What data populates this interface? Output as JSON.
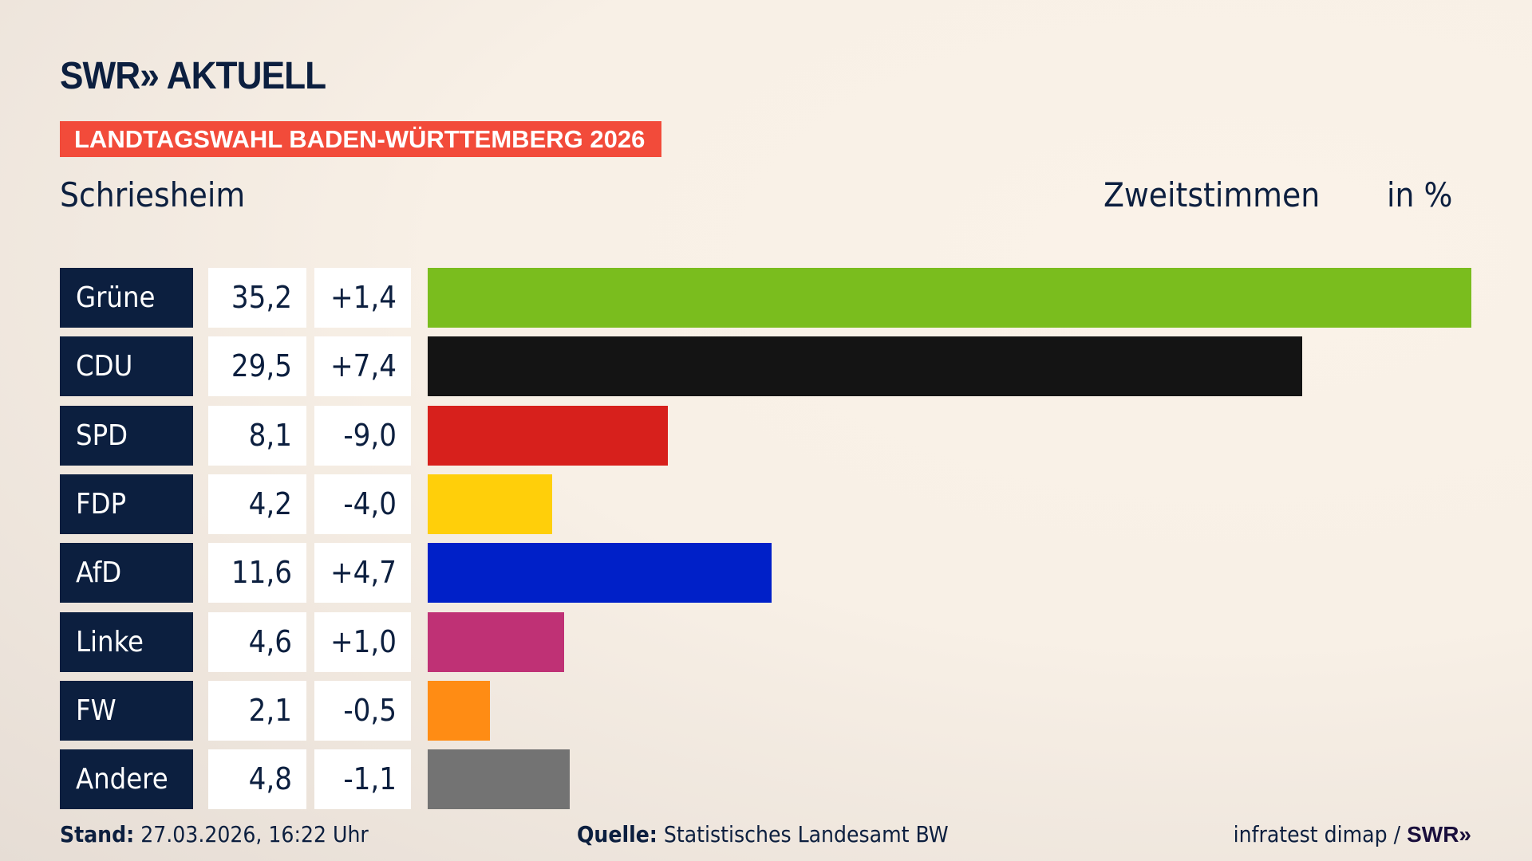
{
  "header": {
    "logo": "SWR» AKTUELL",
    "banner": "LANDTAGSWAHL BADEN-WÜRTTEMBERG 2026",
    "place": "Schriesheim",
    "measure": "Zweitstimmen",
    "unit": "in %"
  },
  "footer": {
    "stand_label": "Stand:",
    "stand_value": " 27.03.2026, 16:22 Uhr",
    "source_label": "Quelle:",
    "source_value": " Statistisches Landesamt BW",
    "credit": "infratest dimap / ",
    "credit_logo": "SWR»"
  },
  "chart_data": {
    "type": "bar",
    "orientation": "horizontal",
    "xlim": [
      0,
      35.2
    ],
    "categories": [
      "Grüne",
      "CDU",
      "SPD",
      "FDP",
      "AfD",
      "Linke",
      "FW",
      "Andere"
    ],
    "values": [
      35.2,
      29.5,
      8.1,
      4.2,
      11.6,
      4.6,
      2.1,
      4.8
    ],
    "value_labels": [
      "35,2",
      "29,5",
      "8,1",
      "4,2",
      "11,6",
      "4,6",
      "2,1",
      "4,8"
    ],
    "diff_labels": [
      "+1,4",
      "+7,4",
      "-9,0",
      "-4,0",
      "+4,7",
      "+1,0",
      "-0,5",
      "-1,1"
    ],
    "diffs": [
      1.4,
      7.4,
      -9.0,
      -4.0,
      4.7,
      1.0,
      -0.5,
      -1.1
    ],
    "colors": [
      "#7abd1e",
      "#141414",
      "#d7201c",
      "#ffcf0a",
      "#0020c8",
      "#bf3175",
      "#ff8c14",
      "#737373"
    ]
  }
}
